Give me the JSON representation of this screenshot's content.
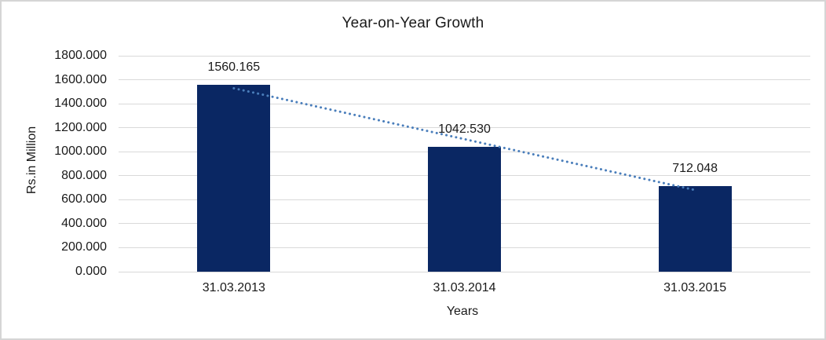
{
  "chart_data": {
    "type": "bar",
    "title": "Year-on-Year Growth",
    "xlabel": "Years",
    "ylabel": "Rs.in Million",
    "categories": [
      "31.03.2013",
      "31.03.2014",
      "31.03.2015"
    ],
    "values": [
      1560.165,
      1042.53,
      712.048
    ],
    "data_labels": [
      "1560.165",
      "1042.530",
      "712.048"
    ],
    "ylim": [
      0,
      1800
    ],
    "ytick_step": 200,
    "ytick_labels": [
      "0.000",
      "200.000",
      "400.000",
      "600.000",
      "800.000",
      "1000.000",
      "1200.000",
      "1400.000",
      "1600.000",
      "1800.000"
    ],
    "grid": true,
    "legend": "none",
    "bar_color": "#0a2763",
    "gridline_color": "#d9d9d9",
    "text_color": "#1a1a1a",
    "trendline": {
      "type": "linear",
      "style": "dotted",
      "color": "#4a7ebb"
    }
  }
}
